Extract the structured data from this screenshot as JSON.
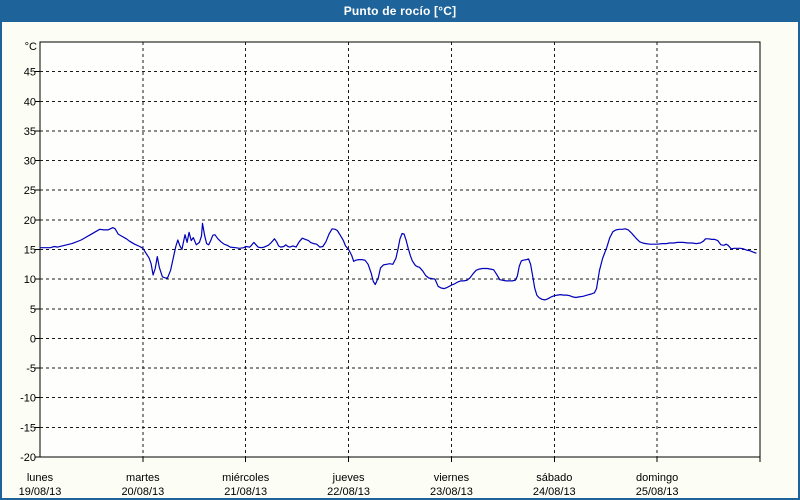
{
  "window": {
    "title": "Punto de rocío [°C]"
  },
  "colors": {
    "titlebar_bg": "#1e6399",
    "titlebar_text": "#ffffff",
    "frame_border": "#1e6399",
    "page_bg": "#fcfdf5",
    "plot_bg": "#fefefc",
    "axis": "#000000",
    "grid": "#1a1a1a",
    "line": "#0000bb",
    "label": "#000000"
  },
  "chart_data": {
    "type": "line",
    "title": "Punto de rocío [°C]",
    "y_axis": {
      "unit_label": "°C",
      "min": -20,
      "max": 50,
      "tick_step": 5,
      "tick_labels": [
        45,
        40,
        35,
        30,
        25,
        20,
        15,
        10,
        5,
        0,
        -5,
        -10,
        -15,
        -20
      ],
      "grid_from": 45,
      "grid_to": -15
    },
    "x_axis": {
      "min_days": 0,
      "max_days": 7,
      "days": [
        {
          "name": "lunes",
          "date": "19/08/13"
        },
        {
          "name": "martes",
          "date": "20/08/13"
        },
        {
          "name": "miércoles",
          "date": "21/08/13"
        },
        {
          "name": "jueves",
          "date": "22/08/13"
        },
        {
          "name": "viernes",
          "date": "23/08/13"
        },
        {
          "name": "sábado",
          "date": "24/08/13"
        },
        {
          "name": "domingo",
          "date": "25/08/13"
        }
      ]
    },
    "grid": {
      "horizontal": "dashed",
      "vertical": "dashed"
    },
    "legend": "none",
    "series": [
      {
        "name": "Punto de rocío",
        "unit": "°C",
        "color": "#0000bb",
        "points": [
          [
            0.0,
            15.3
          ],
          [
            0.1,
            15.3
          ],
          [
            0.14,
            15.5
          ],
          [
            0.17,
            15.4
          ],
          [
            0.24,
            15.7
          ],
          [
            0.31,
            16.0
          ],
          [
            0.34,
            16.2
          ],
          [
            0.4,
            16.6
          ],
          [
            0.44,
            17.0
          ],
          [
            0.49,
            17.5
          ],
          [
            0.53,
            17.9
          ],
          [
            0.58,
            18.4
          ],
          [
            0.62,
            18.3
          ],
          [
            0.66,
            18.3
          ],
          [
            0.71,
            18.7
          ],
          [
            0.73,
            18.5
          ],
          [
            0.76,
            17.6
          ],
          [
            0.8,
            17.2
          ],
          [
            0.84,
            16.8
          ],
          [
            0.87,
            16.4
          ],
          [
            0.92,
            15.9
          ],
          [
            0.97,
            15.5
          ],
          [
            1.0,
            15.2
          ],
          [
            1.03,
            14.4
          ],
          [
            1.06,
            13.6
          ],
          [
            1.08,
            12.6
          ],
          [
            1.1,
            10.7
          ],
          [
            1.12,
            11.8
          ],
          [
            1.14,
            13.8
          ],
          [
            1.16,
            12.0
          ],
          [
            1.19,
            10.4
          ],
          [
            1.22,
            10.2
          ],
          [
            1.24,
            10.2
          ],
          [
            1.27,
            11.5
          ],
          [
            1.3,
            13.9
          ],
          [
            1.32,
            15.5
          ],
          [
            1.34,
            16.6
          ],
          [
            1.36,
            15.6
          ],
          [
            1.38,
            15.0
          ],
          [
            1.41,
            17.5
          ],
          [
            1.43,
            16.2
          ],
          [
            1.45,
            17.9
          ],
          [
            1.47,
            16.5
          ],
          [
            1.49,
            17.0
          ],
          [
            1.52,
            15.8
          ],
          [
            1.55,
            16.2
          ],
          [
            1.57,
            17.3
          ],
          [
            1.58,
            19.4
          ],
          [
            1.6,
            17.4
          ],
          [
            1.62,
            16.0
          ],
          [
            1.64,
            15.8
          ],
          [
            1.66,
            16.5
          ],
          [
            1.68,
            17.4
          ],
          [
            1.7,
            17.5
          ],
          [
            1.73,
            16.8
          ],
          [
            1.76,
            16.3
          ],
          [
            1.79,
            15.9
          ],
          [
            1.82,
            15.7
          ],
          [
            1.85,
            15.4
          ],
          [
            1.9,
            15.3
          ],
          [
            1.94,
            15.2
          ],
          [
            1.98,
            15.3
          ],
          [
            2.0,
            15.5
          ],
          [
            2.04,
            15.4
          ],
          [
            2.06,
            15.8
          ],
          [
            2.08,
            16.2
          ],
          [
            2.1,
            15.8
          ],
          [
            2.12,
            15.4
          ],
          [
            2.15,
            15.3
          ],
          [
            2.18,
            15.4
          ],
          [
            2.22,
            15.7
          ],
          [
            2.25,
            16.2
          ],
          [
            2.28,
            16.8
          ],
          [
            2.3,
            16.3
          ],
          [
            2.32,
            15.6
          ],
          [
            2.34,
            15.4
          ],
          [
            2.37,
            15.5
          ],
          [
            2.39,
            15.8
          ],
          [
            2.41,
            15.5
          ],
          [
            2.43,
            15.4
          ],
          [
            2.46,
            15.6
          ],
          [
            2.49,
            15.4
          ],
          [
            2.52,
            16.3
          ],
          [
            2.55,
            16.9
          ],
          [
            2.58,
            16.7
          ],
          [
            2.61,
            16.5
          ],
          [
            2.63,
            16.2
          ],
          [
            2.66,
            16.0
          ],
          [
            2.69,
            15.9
          ],
          [
            2.72,
            15.4
          ],
          [
            2.75,
            15.5
          ],
          [
            2.78,
            16.3
          ],
          [
            2.81,
            17.6
          ],
          [
            2.84,
            18.5
          ],
          [
            2.87,
            18.4
          ],
          [
            2.89,
            18.2
          ],
          [
            2.92,
            17.4
          ],
          [
            2.95,
            16.5
          ],
          [
            2.97,
            15.6
          ],
          [
            3.0,
            15.0
          ],
          [
            3.03,
            14.0
          ],
          [
            3.05,
            13.0
          ],
          [
            3.07,
            13.2
          ],
          [
            3.1,
            13.3
          ],
          [
            3.13,
            13.3
          ],
          [
            3.16,
            13.2
          ],
          [
            3.19,
            12.5
          ],
          [
            3.22,
            11.0
          ],
          [
            3.24,
            9.6
          ],
          [
            3.26,
            9.1
          ],
          [
            3.29,
            10.3
          ],
          [
            3.31,
            11.9
          ],
          [
            3.34,
            12.4
          ],
          [
            3.37,
            12.5
          ],
          [
            3.4,
            12.6
          ],
          [
            3.43,
            12.5
          ],
          [
            3.46,
            13.5
          ],
          [
            3.48,
            15.0
          ],
          [
            3.5,
            16.8
          ],
          [
            3.52,
            17.7
          ],
          [
            3.54,
            17.6
          ],
          [
            3.56,
            16.5
          ],
          [
            3.58,
            15.2
          ],
          [
            3.6,
            14.0
          ],
          [
            3.62,
            13.1
          ],
          [
            3.65,
            12.3
          ],
          [
            3.67,
            12.1
          ],
          [
            3.69,
            12.0
          ],
          [
            3.72,
            11.4
          ],
          [
            3.75,
            10.6
          ],
          [
            3.78,
            10.2
          ],
          [
            3.81,
            10.1
          ],
          [
            3.84,
            10.0
          ],
          [
            3.87,
            8.8
          ],
          [
            3.9,
            8.5
          ],
          [
            3.93,
            8.4
          ],
          [
            3.96,
            8.6
          ],
          [
            3.99,
            8.9
          ],
          [
            4.0,
            9.0
          ],
          [
            4.03,
            9.2
          ],
          [
            4.06,
            9.5
          ],
          [
            4.09,
            9.7
          ],
          [
            4.12,
            9.7
          ],
          [
            4.15,
            9.8
          ],
          [
            4.18,
            10.2
          ],
          [
            4.21,
            10.9
          ],
          [
            4.24,
            11.5
          ],
          [
            4.27,
            11.7
          ],
          [
            4.3,
            11.8
          ],
          [
            4.33,
            11.8
          ],
          [
            4.35,
            11.8
          ],
          [
            4.38,
            11.7
          ],
          [
            4.41,
            11.6
          ],
          [
            4.44,
            10.8
          ],
          [
            4.47,
            9.9
          ],
          [
            4.5,
            9.8
          ],
          [
            4.53,
            9.7
          ],
          [
            4.56,
            9.7
          ],
          [
            4.59,
            9.7
          ],
          [
            4.62,
            9.8
          ],
          [
            4.64,
            10.5
          ],
          [
            4.66,
            12.2
          ],
          [
            4.68,
            13.1
          ],
          [
            4.7,
            13.2
          ],
          [
            4.73,
            13.3
          ],
          [
            4.75,
            13.4
          ],
          [
            4.77,
            12.5
          ],
          [
            4.79,
            10.5
          ],
          [
            4.81,
            8.5
          ],
          [
            4.83,
            7.3
          ],
          [
            4.85,
            6.9
          ],
          [
            4.88,
            6.6
          ],
          [
            4.91,
            6.5
          ],
          [
            4.94,
            6.7
          ],
          [
            4.97,
            7.0
          ],
          [
            5.0,
            7.2
          ],
          [
            5.03,
            7.3
          ],
          [
            5.06,
            7.4
          ],
          [
            5.09,
            7.3
          ],
          [
            5.12,
            7.3
          ],
          [
            5.15,
            7.2
          ],
          [
            5.18,
            7.0
          ],
          [
            5.21,
            6.9
          ],
          [
            5.24,
            7.0
          ],
          [
            5.28,
            7.1
          ],
          [
            5.32,
            7.3
          ],
          [
            5.36,
            7.5
          ],
          [
            5.39,
            7.7
          ],
          [
            5.41,
            8.4
          ],
          [
            5.44,
            11.5
          ],
          [
            5.47,
            13.5
          ],
          [
            5.51,
            15.3
          ],
          [
            5.54,
            17.0
          ],
          [
            5.57,
            18.0
          ],
          [
            5.6,
            18.3
          ],
          [
            5.63,
            18.4
          ],
          [
            5.66,
            18.4
          ],
          [
            5.69,
            18.5
          ],
          [
            5.72,
            18.3
          ],
          [
            5.75,
            17.8
          ],
          [
            5.77,
            17.4
          ],
          [
            5.8,
            16.8
          ],
          [
            5.83,
            16.3
          ],
          [
            5.86,
            16.1
          ],
          [
            5.89,
            16.0
          ],
          [
            5.93,
            15.9
          ],
          [
            5.97,
            15.9
          ],
          [
            6.0,
            15.9
          ],
          [
            6.05,
            16.0
          ],
          [
            6.09,
            16.0
          ],
          [
            6.12,
            16.1
          ],
          [
            6.16,
            16.1
          ],
          [
            6.2,
            16.2
          ],
          [
            6.25,
            16.2
          ],
          [
            6.3,
            16.1
          ],
          [
            6.34,
            16.1
          ],
          [
            6.38,
            16.0
          ],
          [
            6.42,
            16.1
          ],
          [
            6.45,
            16.4
          ],
          [
            6.47,
            16.8
          ],
          [
            6.5,
            16.8
          ],
          [
            6.53,
            16.7
          ],
          [
            6.56,
            16.7
          ],
          [
            6.59,
            16.5
          ],
          [
            6.62,
            15.8
          ],
          [
            6.65,
            15.7
          ],
          [
            6.67,
            15.9
          ],
          [
            6.69,
            15.7
          ],
          [
            6.72,
            15.1
          ],
          [
            6.75,
            15.2
          ],
          [
            6.78,
            15.2
          ],
          [
            6.81,
            15.2
          ],
          [
            6.84,
            15.1
          ],
          [
            6.87,
            14.9
          ],
          [
            6.9,
            14.8
          ],
          [
            6.93,
            14.6
          ],
          [
            6.96,
            14.4
          ]
        ]
      }
    ]
  }
}
